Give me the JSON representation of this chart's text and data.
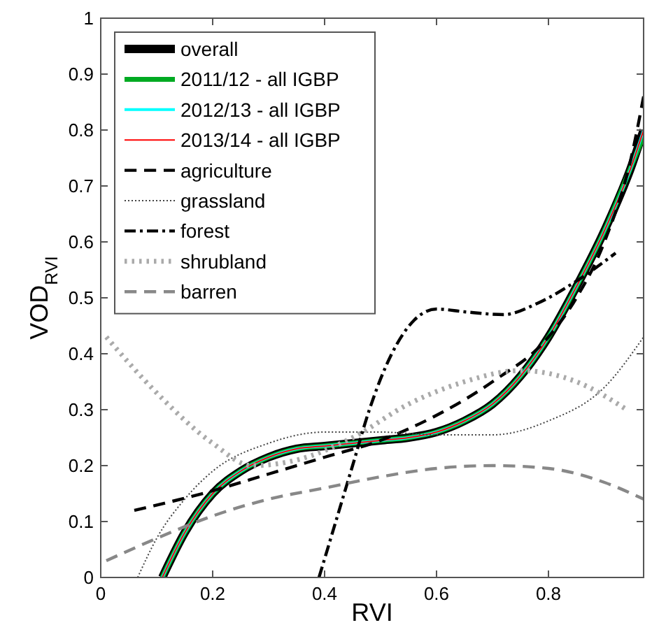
{
  "chart_data": {
    "type": "line",
    "xlabel": "RVI",
    "ylabel": "VOD$_{RVI}$",
    "xlim": [
      0,
      0.97
    ],
    "ylim": [
      0,
      1
    ],
    "xticks": [
      0,
      0.2,
      0.4,
      0.6,
      0.8
    ],
    "yticks": [
      0,
      0.1,
      0.2,
      0.3,
      0.4,
      0.5,
      0.6,
      0.7,
      0.8,
      0.9,
      1
    ],
    "grid": false,
    "legend": "top left",
    "series": [
      {
        "name": "overall",
        "color": "#000000",
        "line_style": "solid",
        "x": [
          0.11,
          0.15,
          0.2,
          0.25,
          0.3,
          0.35,
          0.4,
          0.45,
          0.5,
          0.55,
          0.6,
          0.65,
          0.7,
          0.75,
          0.8,
          0.85,
          0.9,
          0.95,
          0.97
        ],
        "values": [
          0,
          0.08,
          0.15,
          0.19,
          0.215,
          0.23,
          0.235,
          0.24,
          0.245,
          0.25,
          0.26,
          0.28,
          0.31,
          0.36,
          0.43,
          0.52,
          0.62,
          0.74,
          0.8
        ]
      },
      {
        "name": "2011/12 - all IGBP",
        "color": "#00aa22",
        "line_style": "solid",
        "x": [
          0.11,
          0.15,
          0.2,
          0.25,
          0.3,
          0.35,
          0.4,
          0.45,
          0.5,
          0.55,
          0.6,
          0.65,
          0.7,
          0.75,
          0.8,
          0.85,
          0.9,
          0.95,
          0.97
        ],
        "values": [
          0,
          0.08,
          0.15,
          0.19,
          0.215,
          0.23,
          0.235,
          0.24,
          0.245,
          0.25,
          0.26,
          0.28,
          0.31,
          0.36,
          0.43,
          0.52,
          0.62,
          0.74,
          0.79
        ]
      },
      {
        "name": "2012/13 - all IGBP",
        "color": "#00ffff",
        "line_style": "solid",
        "x": [
          0.11,
          0.15,
          0.2,
          0.25,
          0.3,
          0.35,
          0.4,
          0.45,
          0.5,
          0.55,
          0.6,
          0.65,
          0.7,
          0.75,
          0.8,
          0.85,
          0.9,
          0.95,
          0.97
        ],
        "values": [
          0,
          0.08,
          0.15,
          0.19,
          0.215,
          0.23,
          0.235,
          0.24,
          0.245,
          0.25,
          0.26,
          0.28,
          0.31,
          0.36,
          0.43,
          0.52,
          0.62,
          0.74,
          0.8
        ]
      },
      {
        "name": "2013/14 - all IGBP",
        "color": "#ff0000",
        "line_style": "solid",
        "x": [
          0.11,
          0.15,
          0.2,
          0.25,
          0.3,
          0.35,
          0.4,
          0.45,
          0.5,
          0.55,
          0.6,
          0.65,
          0.7,
          0.75,
          0.8,
          0.85,
          0.9,
          0.95,
          0.97
        ],
        "values": [
          0,
          0.08,
          0.15,
          0.19,
          0.215,
          0.23,
          0.235,
          0.24,
          0.245,
          0.25,
          0.26,
          0.28,
          0.31,
          0.36,
          0.43,
          0.52,
          0.62,
          0.74,
          0.8
        ]
      },
      {
        "name": "agriculture",
        "color": "#000000",
        "line_style": "dashed",
        "x": [
          0.06,
          0.2,
          0.3,
          0.4,
          0.5,
          0.6,
          0.7,
          0.8,
          0.85,
          0.9,
          0.95,
          0.97
        ],
        "values": [
          0.12,
          0.155,
          0.185,
          0.215,
          0.245,
          0.29,
          0.35,
          0.43,
          0.5,
          0.6,
          0.76,
          0.86
        ]
      },
      {
        "name": "grassland",
        "color": "#444444",
        "line_style": "dotted",
        "x": [
          0.066,
          0.1,
          0.15,
          0.2,
          0.3,
          0.4,
          0.5,
          0.6,
          0.7,
          0.8,
          0.9,
          0.97
        ],
        "values": [
          0,
          0.07,
          0.14,
          0.19,
          0.24,
          0.26,
          0.26,
          0.255,
          0.255,
          0.28,
          0.34,
          0.43
        ]
      },
      {
        "name": "forest",
        "color": "#000000",
        "line_style": "dashdot",
        "x": [
          0.39,
          0.42,
          0.45,
          0.48,
          0.52,
          0.56,
          0.6,
          0.65,
          0.72,
          0.78,
          0.85,
          0.92
        ],
        "values": [
          0,
          0.1,
          0.2,
          0.3,
          0.4,
          0.46,
          0.48,
          0.475,
          0.47,
          0.49,
          0.53,
          0.58
        ]
      },
      {
        "name": "shrubland",
        "color": "#aaaaaa",
        "line_style": "dotted",
        "x": [
          0.01,
          0.1,
          0.2,
          0.27,
          0.35,
          0.45,
          0.55,
          0.65,
          0.75,
          0.85,
          0.94
        ],
        "values": [
          0.43,
          0.33,
          0.24,
          0.2,
          0.21,
          0.25,
          0.31,
          0.35,
          0.37,
          0.35,
          0.3
        ]
      },
      {
        "name": "barren",
        "color": "#888888",
        "line_style": "dashed",
        "x": [
          0.01,
          0.1,
          0.2,
          0.3,
          0.4,
          0.5,
          0.6,
          0.7,
          0.8,
          0.9,
          0.97
        ],
        "values": [
          0.03,
          0.07,
          0.11,
          0.14,
          0.16,
          0.18,
          0.195,
          0.2,
          0.195,
          0.17,
          0.14
        ]
      }
    ]
  }
}
